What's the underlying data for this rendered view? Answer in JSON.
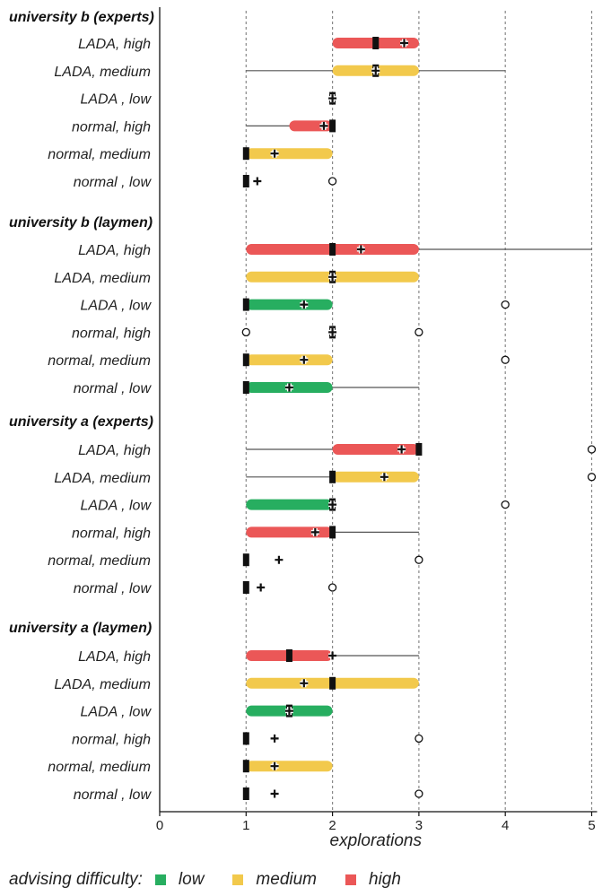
{
  "chart_data": {
    "type": "boxplot",
    "xlabel": "explorations",
    "xlim": [
      0,
      5
    ],
    "x_ticks": [
      0,
      1,
      2,
      3,
      4,
      5
    ],
    "grid": "vertical dotted at 1-5",
    "colors": {
      "low": "#27ae60",
      "medium": "#f2c94c",
      "high": "#eb5757"
    },
    "groups": [
      {
        "title": "university b (experts)",
        "rows": [
          {
            "label": "LADA, high",
            "level": "high",
            "whisker": [
              2,
              3
            ],
            "box": [
              2,
              3
            ],
            "median": 2.5,
            "mean": 2.83,
            "outliers": []
          },
          {
            "label": "LADA, medium",
            "level": "medium",
            "whisker": [
              1,
              4
            ],
            "box": [
              2,
              3
            ],
            "median": 2.5,
            "mean": 2.5,
            "outliers": []
          },
          {
            "label": "LADA , low",
            "level": "low",
            "whisker": [
              2,
              2
            ],
            "box": [
              2,
              2
            ],
            "median": 2,
            "mean": 2,
            "outliers": []
          },
          {
            "label": "normal, high",
            "level": "high",
            "whisker": [
              1,
              2
            ],
            "box": [
              1.5,
              2
            ],
            "median": 2,
            "mean": 1.9,
            "outliers": []
          },
          {
            "label": "normal, medium",
            "level": "medium",
            "whisker": [
              1,
              2
            ],
            "box": [
              1,
              2
            ],
            "median": 1,
            "mean": 1.33,
            "outliers": []
          },
          {
            "label": "normal , low",
            "level": "low",
            "whisker": [
              1,
              1
            ],
            "box": [
              1,
              1
            ],
            "median": 1,
            "mean": 1.13,
            "outliers": [
              2
            ]
          }
        ]
      },
      {
        "title": "university b (laymen)",
        "rows": [
          {
            "label": "LADA, high",
            "level": "high",
            "whisker": [
              1,
              5
            ],
            "box": [
              1,
              3
            ],
            "median": 2,
            "mean": 2.33,
            "outliers": []
          },
          {
            "label": "LADA, medium",
            "level": "medium",
            "whisker": [
              1,
              3
            ],
            "box": [
              1,
              3
            ],
            "median": 2,
            "mean": 2,
            "outliers": []
          },
          {
            "label": "LADA , low",
            "level": "low",
            "whisker": [
              1,
              2
            ],
            "box": [
              1,
              2
            ],
            "median": 1,
            "mean": 1.67,
            "outliers": [
              4
            ]
          },
          {
            "label": "normal, high",
            "level": "high",
            "whisker": [
              2,
              2
            ],
            "box": [
              2,
              2
            ],
            "median": 2,
            "mean": 2,
            "outliers": [
              1,
              3
            ]
          },
          {
            "label": "normal, medium",
            "level": "medium",
            "whisker": [
              1,
              2
            ],
            "box": [
              1,
              2
            ],
            "median": 1,
            "mean": 1.67,
            "outliers": [
              4
            ]
          },
          {
            "label": "normal , low",
            "level": "low",
            "whisker": [
              1,
              3
            ],
            "box": [
              1,
              2
            ],
            "median": 1,
            "mean": 1.5,
            "outliers": []
          }
        ]
      },
      {
        "title": "university a (experts)",
        "rows": [
          {
            "label": "LADA, high",
            "level": "high",
            "whisker": [
              1,
              3
            ],
            "box": [
              2,
              3
            ],
            "median": 3,
            "mean": 2.8,
            "outliers": [
              5
            ]
          },
          {
            "label": "LADA, medium",
            "level": "medium",
            "whisker": [
              1,
              3
            ],
            "box": [
              2,
              3
            ],
            "median": 2,
            "mean": 2.6,
            "outliers": [
              5
            ]
          },
          {
            "label": "LADA , low",
            "level": "low",
            "whisker": [
              1,
              2
            ],
            "box": [
              1,
              2
            ],
            "median": 2,
            "mean": 2,
            "outliers": [
              4
            ]
          },
          {
            "label": "normal, high",
            "level": "high",
            "whisker": [
              1,
              3
            ],
            "box": [
              1,
              2
            ],
            "median": 2,
            "mean": 1.8,
            "outliers": []
          },
          {
            "label": "normal, medium",
            "level": "medium",
            "whisker": [
              1,
              1
            ],
            "box": [
              1,
              1
            ],
            "median": 1,
            "mean": 1.38,
            "outliers": [
              3
            ]
          },
          {
            "label": "normal , low",
            "level": "low",
            "whisker": [
              1,
              1
            ],
            "box": [
              1,
              1
            ],
            "median": 1,
            "mean": 1.17,
            "outliers": [
              2
            ]
          }
        ]
      },
      {
        "title": "university a (laymen)",
        "rows": [
          {
            "label": "LADA, high",
            "level": "high",
            "whisker": [
              1,
              3
            ],
            "box": [
              1,
              2
            ],
            "median": 1.5,
            "mean": 2,
            "outliers": []
          },
          {
            "label": "LADA, medium",
            "level": "medium",
            "whisker": [
              1,
              3
            ],
            "box": [
              1,
              3
            ],
            "median": 2,
            "mean": 1.67,
            "outliers": []
          },
          {
            "label": "LADA , low",
            "level": "low",
            "whisker": [
              1,
              2
            ],
            "box": [
              1,
              2
            ],
            "median": 1.5,
            "mean": 1.5,
            "outliers": []
          },
          {
            "label": "normal, high",
            "level": "high",
            "whisker": [
              1,
              1
            ],
            "box": [
              1,
              1
            ],
            "median": 1,
            "mean": 1.33,
            "outliers": [
              3
            ]
          },
          {
            "label": "normal, medium",
            "level": "medium",
            "whisker": [
              1,
              2
            ],
            "box": [
              1,
              2
            ],
            "median": 1,
            "mean": 1.33,
            "outliers": []
          },
          {
            "label": "normal , low",
            "level": "low",
            "whisker": [
              1,
              1
            ],
            "box": [
              1,
              1
            ],
            "median": 1,
            "mean": 1.33,
            "outliers": [
              3
            ]
          }
        ]
      }
    ],
    "legend": {
      "title": "advising difficulty:",
      "items": [
        {
          "label": "low",
          "color": "#27ae60"
        },
        {
          "label": "medium",
          "color": "#f2c94c"
        },
        {
          "label": "high",
          "color": "#eb5757"
        }
      ]
    }
  }
}
